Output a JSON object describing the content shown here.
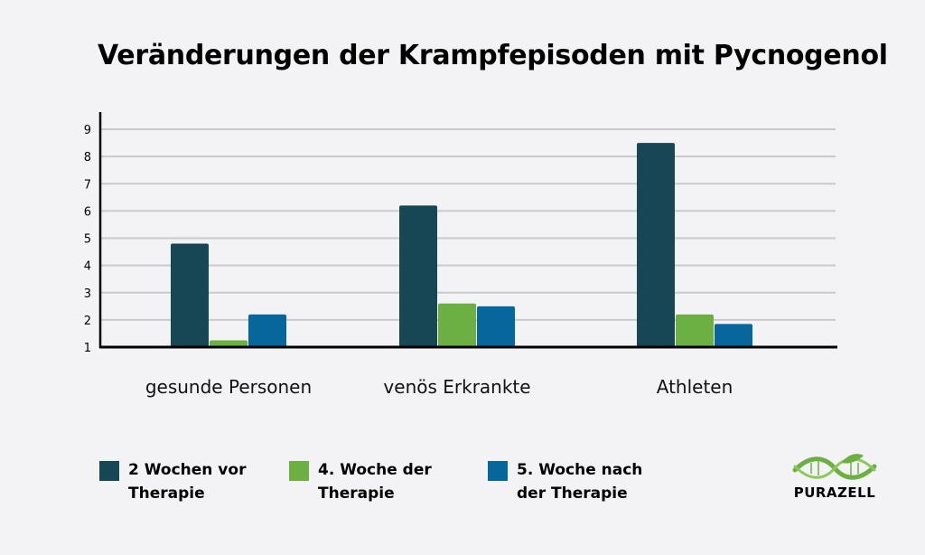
{
  "chart_data": {
    "type": "bar",
    "title": "Veränderungen der Krampfepisoden mit Pycnogenol",
    "categories": [
      "gesunde Personen",
      "venös Erkrankte",
      "Athleten"
    ],
    "series": [
      {
        "name": "2 Wochen vor\nTherapie",
        "color": "#174655",
        "values": [
          4.8,
          6.2,
          8.5
        ]
      },
      {
        "name": "4. Woche der\nTherapie",
        "color": "#6cb043",
        "values": [
          1.25,
          2.6,
          2.2
        ]
      },
      {
        "name": "5. Woche nach\nder Therapie",
        "color": "#07679d",
        "values": [
          2.2,
          2.5,
          1.85
        ]
      }
    ],
    "ylim": [
      1,
      9
    ],
    "yticks": [
      1,
      2,
      3,
      4,
      5,
      6,
      7,
      8,
      9
    ],
    "grid": true,
    "legend_position": "bottom"
  },
  "logo": {
    "text": "PURAZELL",
    "icon": "dna-leaf-icon",
    "color": "#6cb043"
  }
}
